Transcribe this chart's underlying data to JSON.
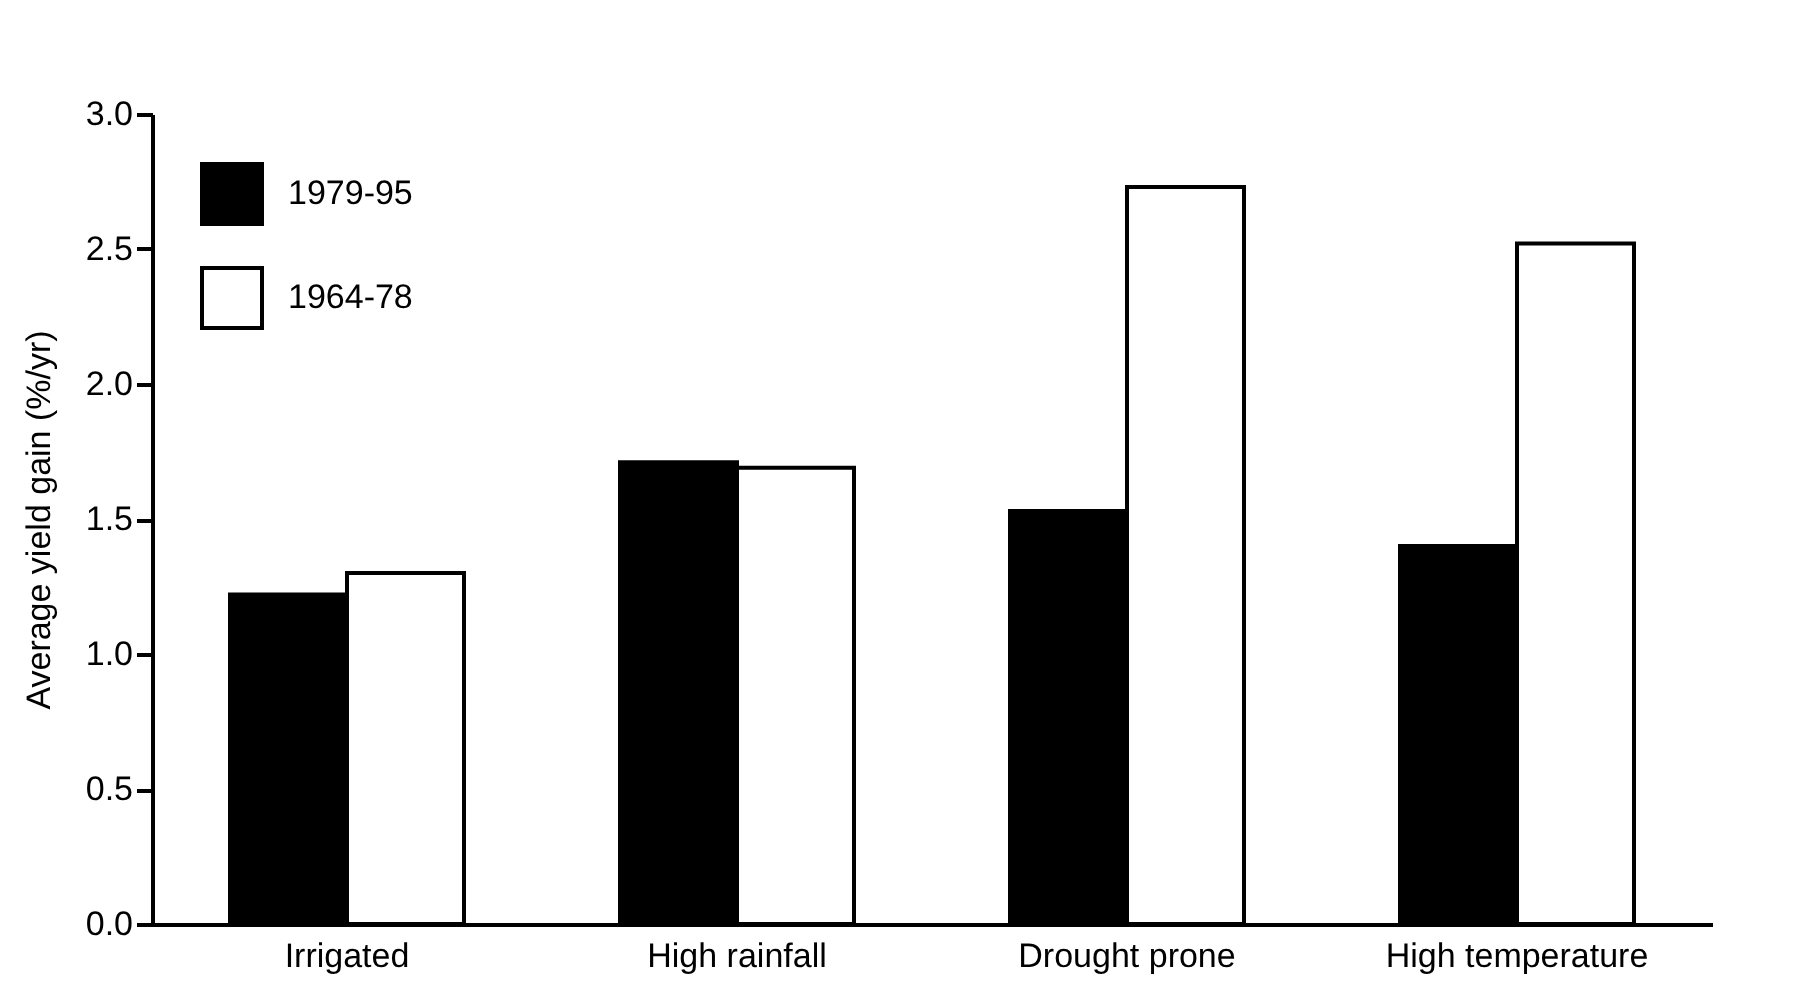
{
  "chart_data": {
    "type": "bar",
    "ylabel": "Average yield gain (%/yr)",
    "categories": [
      "Irrigated",
      "High rainfall",
      "Drought prone",
      "High temperature"
    ],
    "series": [
      {
        "name": "1979-95",
        "color": "#000000",
        "values": [
          1.22,
          1.71,
          1.53,
          1.4
        ]
      },
      {
        "name": "1964-78",
        "color": "#ffffff",
        "values": [
          1.3,
          1.69,
          2.73,
          2.52
        ]
      }
    ],
    "ylim": [
      0,
      3.0
    ],
    "yticks": [
      {
        "value": 0,
        "label": "0.0"
      },
      {
        "value": 0.5,
        "label": "0.5"
      },
      {
        "value": 1,
        "label": "1.0"
      },
      {
        "value": 1.5,
        "label": "1.5"
      },
      {
        "value": 2,
        "label": "2.0"
      },
      {
        "value": 2.5,
        "label": "2.5"
      },
      {
        "value": 3,
        "label": "3.0"
      }
    ],
    "grid": false,
    "legend": "top left"
  }
}
